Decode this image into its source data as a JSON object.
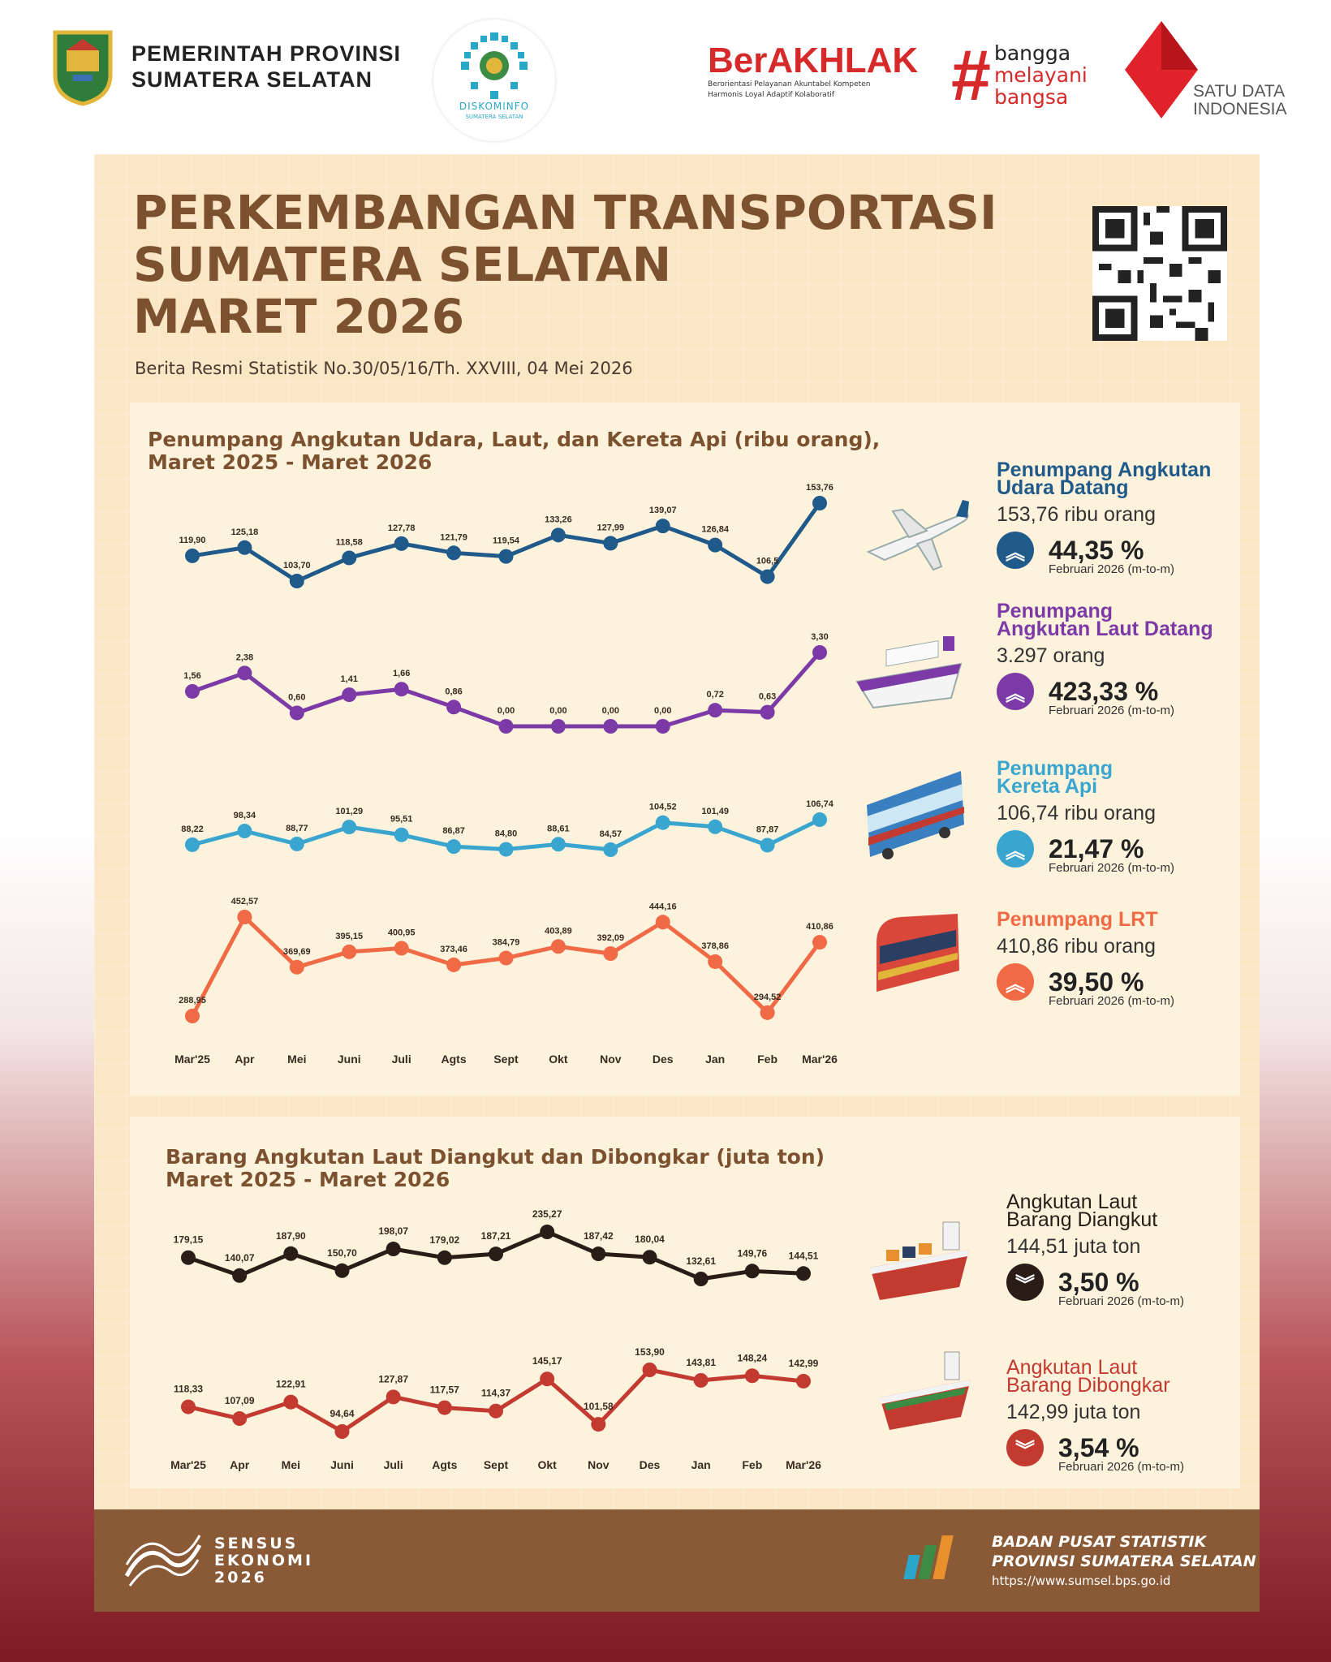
{
  "header": {
    "gov_line1": "PEMERINTAH PROVINSI",
    "gov_line2": "SUMATERA SELATAN",
    "diskominfo": "DISKOMINFO",
    "diskominfo_sub": "SUMATERA SELATAN",
    "berakhlak": "BerAKHLAK",
    "berakhlak_line1": "Berorientasi Pelayanan Akuntabel Kompeten",
    "berakhlak_line2": "Harmonis Loyal Adaptif Kolaboratif",
    "bangga_1": "bangga",
    "bangga_2": "melayani",
    "bangga_3": "bangsa",
    "satu_data": "SATU DATA INDONESIA"
  },
  "title": {
    "line1": "PERKEMBANGAN TRANSPORTASI",
    "line2": "SUMATERA SELATAN",
    "line3": "MARET 2026",
    "subtitle": "Berita Resmi Statistik No.30/05/16/Th. XXVIII, 04 Mei 2026"
  },
  "passenger_section": {
    "title1": "Penumpang Angkutan Udara, Laut, dan Kereta Api (ribu orang),",
    "title2": "Maret 2025 - Maret 2026",
    "cards": [
      {
        "name1": "Penumpang Angkutan",
        "name2": "Udara Datang",
        "value": "153,76 ribu orang",
        "pct": "44,35 %",
        "note": "Februari 2026 (m-to-m)",
        "color": "#1f5a8a",
        "direction": "up"
      },
      {
        "name1": "Penumpang",
        "name2": "Angkutan Laut Datang",
        "value": "3.297  orang",
        "pct": "423,33 %",
        "note": "Februari 2026  (m-to-m)",
        "color": "#7b3aa6",
        "direction": "up"
      },
      {
        "name1": "Penumpang",
        "name2": "Kereta Api",
        "value": "106,74 ribu orang",
        "pct": "21,47 %",
        "note": "Februari 2026  (m-to-m)",
        "color": "#3aa6d0",
        "direction": "up"
      },
      {
        "name1": "Penumpang LRT",
        "name2": "",
        "value": "410,86 ribu orang",
        "pct": "39,50 %",
        "note": "Februari 2026  (m-to-m)",
        "color": "#ef6a45",
        "direction": "up"
      }
    ]
  },
  "goods_section": {
    "title1": "Barang Angkutan Laut Diangkut dan Dibongkar (juta ton)",
    "title2": "Maret 2025 - Maret 2026",
    "cards": [
      {
        "name1": "Angkutan Laut",
        "name2": "Barang Diangkut",
        "value": "144,51 juta ton",
        "pct": "3,50 %",
        "note": "Februari 2026 (m-to-m)",
        "color": "#2a1d17",
        "direction": "down"
      },
      {
        "name1": "Angkutan Laut",
        "name2": "Barang Dibongkar",
        "value": "142,99 juta ton",
        "pct": "3,54 %",
        "note": "Februari 2026 (m-to-m)",
        "color": "#c23a30",
        "direction": "down"
      }
    ]
  },
  "chart_data": [
    {
      "type": "line",
      "title": "Penumpang Angkutan Udara, Laut, dan Kereta Api (ribu orang), Maret 2025 - Maret 2026",
      "categories": [
        "Mar'25",
        "Apr",
        "Mei",
        "Juni",
        "Juli",
        "Agts",
        "Sept",
        "Okt",
        "Nov",
        "Des",
        "Jan",
        "Feb",
        "Mar'26"
      ],
      "series": [
        {
          "name": "Penumpang Angkutan Udara Datang",
          "color": "#1f5a8a",
          "values": [
            119.9,
            125.18,
            103.7,
            118.58,
            127.78,
            121.79,
            119.54,
            133.26,
            127.99,
            139.07,
            126.84,
            106.53,
            153.76
          ],
          "labels": [
            "119,90",
            "125,18",
            "103,70",
            "118,58",
            "127,78",
            "121,79",
            "119,54",
            "133,26",
            "127,99",
            "139,07",
            "126,84",
            "106,5",
            "153,76"
          ]
        },
        {
          "name": "Penumpang Angkutan Laut Datang",
          "color": "#7b3aa6",
          "values": [
            1.56,
            2.38,
            0.6,
            1.41,
            1.66,
            0.86,
            0.0,
            0.0,
            0.0,
            0.0,
            0.72,
            0.63,
            3.3
          ],
          "labels": [
            "1,56",
            "2,38",
            "0,60",
            "1,41",
            "1,66",
            "0,86",
            "0,00",
            "0,00",
            "0,00",
            "0,00",
            "0,72",
            "0,63",
            "3,30"
          ]
        },
        {
          "name": "Penumpang Kereta Api",
          "color": "#3aa6d0",
          "values": [
            88.22,
            98.34,
            88.77,
            101.29,
            95.51,
            86.87,
            84.8,
            88.61,
            84.57,
            104.52,
            101.49,
            87.87,
            106.74
          ],
          "labels": [
            "88,22",
            "98,34",
            "88,77",
            "101,29",
            "95,51",
            "86,87",
            "84,80",
            "88,61",
            "84,57",
            "104,52",
            "101,49",
            "87,87",
            "106,74"
          ]
        },
        {
          "name": "Penumpang LRT",
          "color": "#ef6a45",
          "values": [
            288.95,
            452.57,
            369.69,
            395.15,
            400.95,
            373.46,
            384.79,
            403.89,
            392.09,
            444.16,
            378.86,
            294.52,
            410.86
          ],
          "labels": [
            "288,95",
            "452,57",
            "369,69",
            "395,15",
            "400,95",
            "373,46",
            "384,79",
            "403,89",
            "392,09",
            "444,16",
            "378,86",
            "294,52",
            "410,86"
          ]
        }
      ]
    },
    {
      "type": "line",
      "title": "Barang Angkutan Laut Diangkut dan Dibongkar (juta ton) Maret 2025 - Maret 2026",
      "categories": [
        "Mar'25",
        "Apr",
        "Mei",
        "Juni",
        "Juli",
        "Agts",
        "Sept",
        "Okt",
        "Nov",
        "Des",
        "Jan",
        "Feb",
        "Mar'26"
      ],
      "series": [
        {
          "name": "Angkutan Laut Barang Diangkut",
          "color": "#2a1d17",
          "values": [
            179.15,
            140.07,
            187.9,
            150.7,
            198.07,
            179.02,
            187.21,
            235.27,
            187.42,
            180.04,
            132.61,
            149.76,
            144.51
          ],
          "labels": [
            "179,15",
            "140,07",
            "187,90",
            "150,70",
            "198,07",
            "179,02",
            "187,21",
            "235,27",
            "187,42",
            "180,04",
            "132,61",
            "149,76",
            "144,51"
          ]
        },
        {
          "name": "Angkutan Laut Barang Dibongkar",
          "color": "#c23a30",
          "values": [
            118.33,
            107.09,
            122.91,
            94.64,
            127.87,
            117.57,
            114.37,
            145.17,
            101.58,
            153.9,
            143.81,
            148.24,
            142.99
          ],
          "labels": [
            "118,33",
            "107,09",
            "122,91",
            "94,64",
            "127,87",
            "117,57",
            "114,37",
            "145,17",
            "101,58",
            "153,90",
            "143,81",
            "148,24",
            "142,99"
          ]
        }
      ]
    }
  ],
  "footer": {
    "sensus1": "SENSUS",
    "sensus2": "EKONOMI",
    "sensus3": "2026",
    "bps1": "BADAN PUSAT STATISTIK",
    "bps2": "PROVINSI SUMATERA SELATAN",
    "bps_url": "https://www.sumsel.bps.go.id"
  }
}
